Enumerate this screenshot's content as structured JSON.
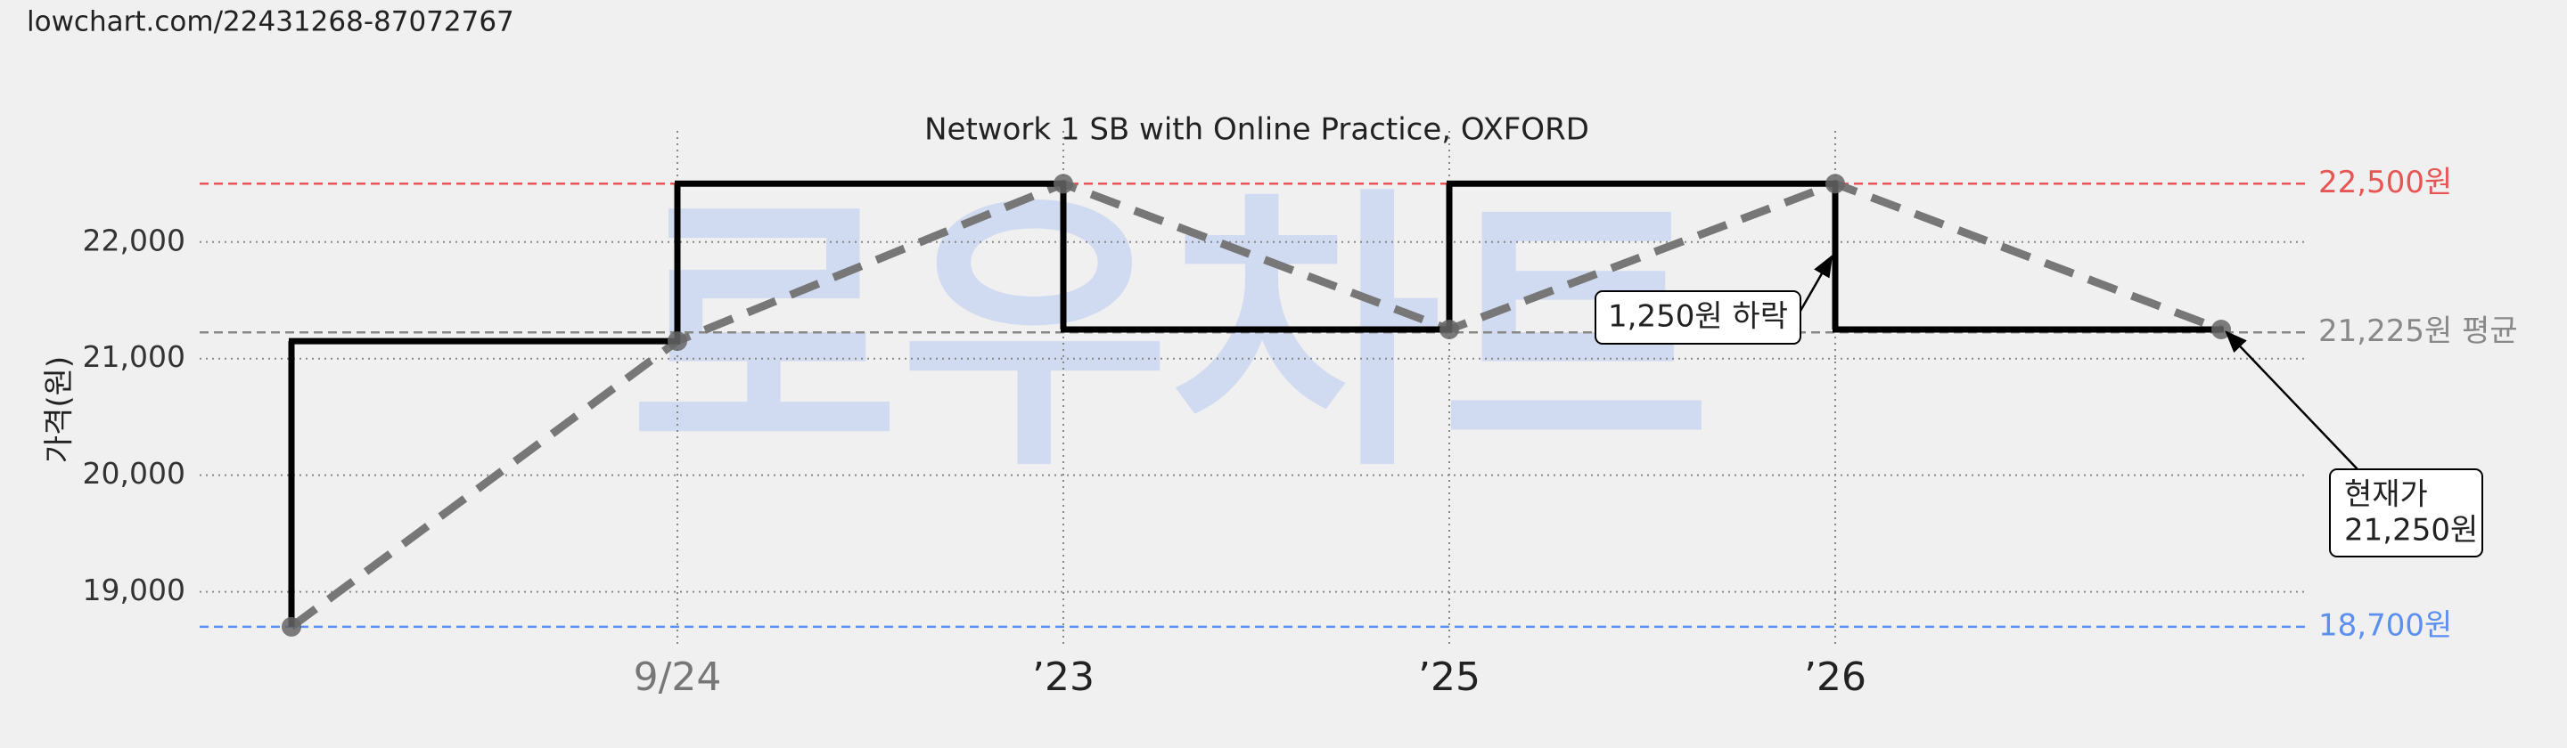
{
  "page_url": "lowchart.com/22431268-87072767",
  "chart_data": {
    "type": "step",
    "title": "Network 1 SB with Online Practice, OXFORD",
    "watermark": "로우차트",
    "y_label": "가격(원)",
    "categories": [
      null,
      "9/24",
      "’23",
      "’25",
      "’26",
      null
    ],
    "series": [
      {
        "name": "가격",
        "color": "#000000",
        "values": [
          18700,
          21150,
          22500,
          21250,
          22500,
          21250
        ]
      }
    ],
    "trend_color": "#777777",
    "ylim": [
      18600,
      22800
    ],
    "yticks": [
      {
        "value": 19000,
        "label": "19,000"
      },
      {
        "value": 20000,
        "label": "20,000"
      },
      {
        "value": 21000,
        "label": "21,000"
      },
      {
        "value": 22000,
        "label": "22,000"
      }
    ],
    "grid": true,
    "reference_lines": [
      {
        "value": 22500,
        "label": "22,500원",
        "color": "#e85555"
      },
      {
        "value": 21225,
        "label": "21,225원 평균",
        "color": "#888888"
      },
      {
        "value": 18700,
        "label": "18,700원",
        "color": "#5b8ff0"
      }
    ],
    "annotations": [
      {
        "text": [
          "1,250원 하락"
        ]
      },
      {
        "text": [
          "현재가",
          "21,250원"
        ]
      }
    ]
  }
}
